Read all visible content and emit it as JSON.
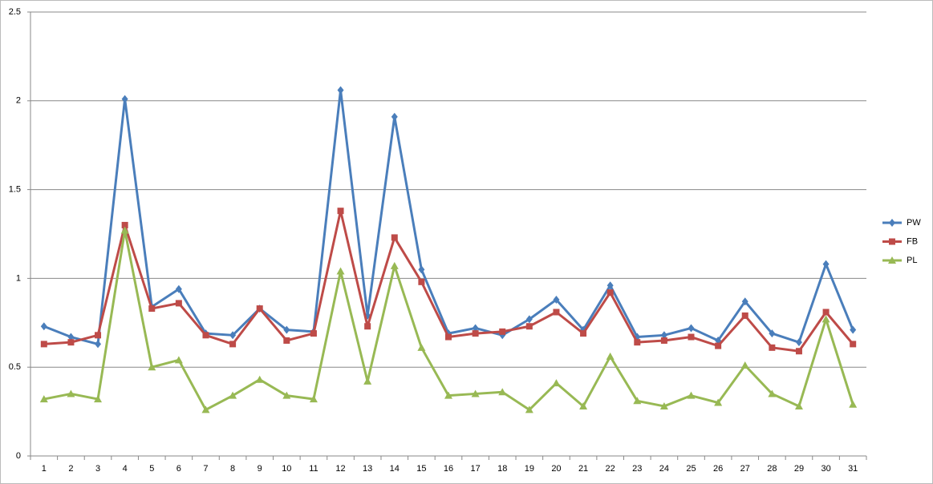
{
  "chart_data": {
    "type": "line",
    "categories": [
      "1",
      "2",
      "3",
      "4",
      "5",
      "6",
      "7",
      "8",
      "9",
      "10",
      "11",
      "12",
      "13",
      "14",
      "15",
      "16",
      "17",
      "18",
      "19",
      "20",
      "21",
      "22",
      "23",
      "24",
      "25",
      "26",
      "27",
      "28",
      "29",
      "30",
      "31"
    ],
    "series": [
      {
        "name": "PW",
        "color": "#4a7ebb",
        "marker": "diamond",
        "values": [
          0.73,
          0.67,
          0.63,
          2.01,
          0.84,
          0.94,
          0.69,
          0.68,
          0.83,
          0.71,
          0.7,
          2.06,
          0.79,
          1.91,
          1.05,
          0.69,
          0.72,
          0.68,
          0.77,
          0.88,
          0.71,
          0.96,
          0.67,
          0.68,
          0.72,
          0.65,
          0.87,
          0.69,
          0.64,
          1.08,
          0.71
        ]
      },
      {
        "name": "FB",
        "color": "#be4b48",
        "marker": "square",
        "values": [
          0.63,
          0.64,
          0.68,
          1.3,
          0.83,
          0.86,
          0.68,
          0.63,
          0.83,
          0.65,
          0.69,
          1.38,
          0.73,
          1.23,
          0.98,
          0.67,
          0.69,
          0.7,
          0.73,
          0.81,
          0.69,
          0.92,
          0.64,
          0.65,
          0.67,
          0.62,
          0.79,
          0.61,
          0.59,
          0.81,
          0.63
        ]
      },
      {
        "name": "PL",
        "color": "#98b954",
        "marker": "triangle",
        "values": [
          0.32,
          0.35,
          0.32,
          1.27,
          0.5,
          0.54,
          0.26,
          0.34,
          0.43,
          0.34,
          0.32,
          1.04,
          0.42,
          1.07,
          0.61,
          0.34,
          0.35,
          0.36,
          0.26,
          0.41,
          0.28,
          0.56,
          0.31,
          0.28,
          0.34,
          0.3,
          0.51,
          0.35,
          0.28,
          0.77,
          0.29
        ]
      }
    ],
    "ylim": [
      0,
      2.5
    ],
    "yticks": [
      0,
      0.5,
      1,
      1.5,
      2,
      2.5
    ],
    "grid": true,
    "legend": "right"
  }
}
